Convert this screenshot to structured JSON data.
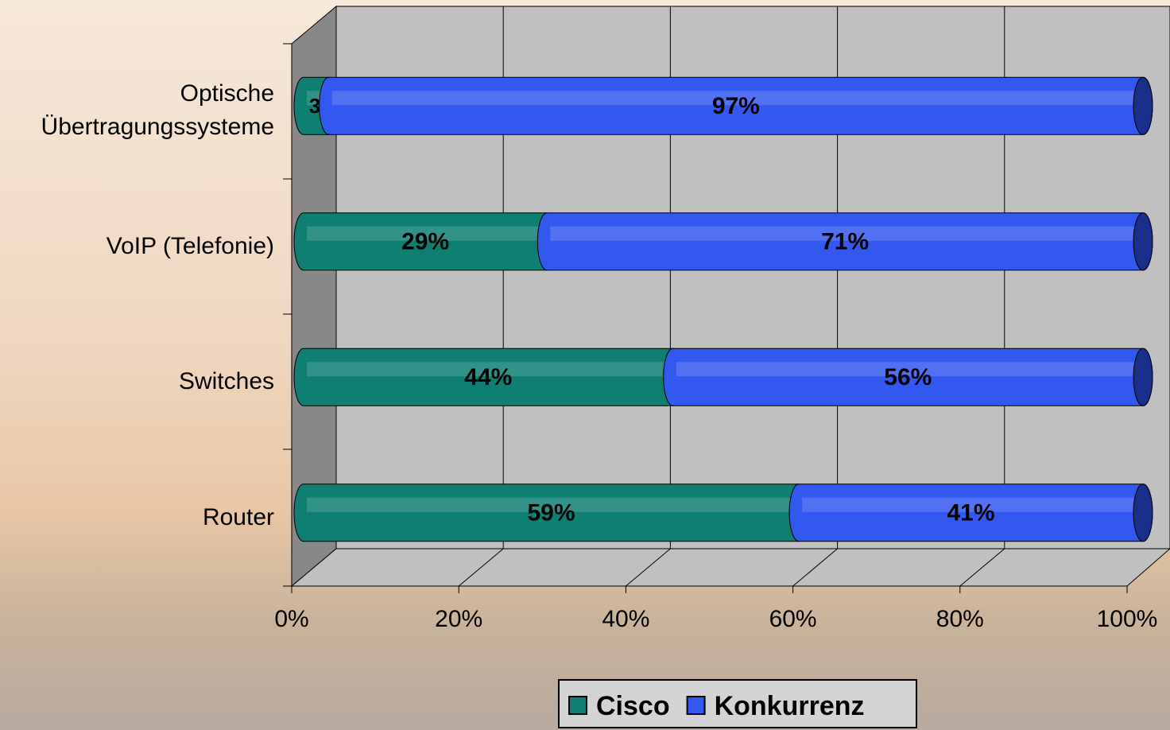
{
  "chart_data": {
    "type": "bar",
    "stacked": true,
    "orientation": "horizontal",
    "categories": [
      "Router",
      "Switches",
      "VoIP (Telefonie)",
      "Optische Übertragungssysteme"
    ],
    "series": [
      {
        "name": "Cisco",
        "color": "#0f7f72",
        "values": [
          59,
          44,
          29,
          3
        ],
        "value_labels": [
          "59%",
          "44%",
          "29%",
          "3"
        ]
      },
      {
        "name": "Konkurrenz",
        "color": "#3358f0",
        "values": [
          41,
          56,
          71,
          97
        ],
        "value_labels": [
          "41%",
          "56%",
          "71%",
          "97%"
        ]
      }
    ],
    "xlim": [
      0,
      100
    ],
    "xticks": [
      {
        "value": 0,
        "label": "0%"
      },
      {
        "value": 20,
        "label": "20%"
      },
      {
        "value": 40,
        "label": "40%"
      },
      {
        "value": 60,
        "label": "60%"
      },
      {
        "value": 80,
        "label": "80%"
      },
      {
        "value": 100,
        "label": "100%"
      }
    ],
    "grid": true,
    "legend": "bottom"
  }
}
